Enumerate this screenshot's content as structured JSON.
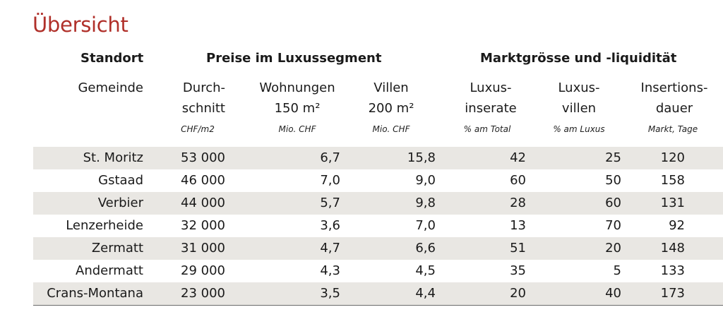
{
  "title": "Übersicht",
  "groups": {
    "standort": "Standort",
    "preise": "Preise im Luxussegment",
    "markt": "Marktgrösse und -liquidität"
  },
  "headers": [
    {
      "line1": "Gemeinde",
      "line2": "",
      "unit": ""
    },
    {
      "line1": "Durch-",
      "line2": "schnitt",
      "unit": "CHF/m2"
    },
    {
      "line1": "Wohnungen",
      "line2": "150 m²",
      "unit": "Mio. CHF"
    },
    {
      "line1": "Villen",
      "line2": "200 m²",
      "unit": "Mio. CHF"
    },
    {
      "line1": "Luxus-",
      "line2": "inserate",
      "unit": "% am Total"
    },
    {
      "line1": "Luxus-",
      "line2": "villen",
      "unit": "% am Luxus"
    },
    {
      "line1": "Insertions-",
      "line2": "dauer",
      "unit": "Markt, Tage"
    }
  ],
  "rows": [
    [
      "St. Moritz",
      "53 000",
      "6,7",
      "15,8",
      "42",
      "25",
      "120"
    ],
    [
      "Gstaad",
      "46 000",
      "7,0",
      "9,0",
      "60",
      "50",
      "158"
    ],
    [
      "Verbier",
      "44 000",
      "5,7",
      "9,8",
      "28",
      "60",
      "131"
    ],
    [
      "Lenzerheide",
      "32 000",
      "3,6",
      "7,0",
      "13",
      "70",
      "92"
    ],
    [
      "Zermatt",
      "31 000",
      "4,7",
      "6,6",
      "51",
      "20",
      "148"
    ],
    [
      "Andermatt",
      "29 000",
      "4,3",
      "4,5",
      "35",
      "5",
      "133"
    ],
    [
      "Crans-Montana",
      "23 000",
      "3,5",
      "4,4",
      "20",
      "40",
      "173"
    ]
  ]
}
